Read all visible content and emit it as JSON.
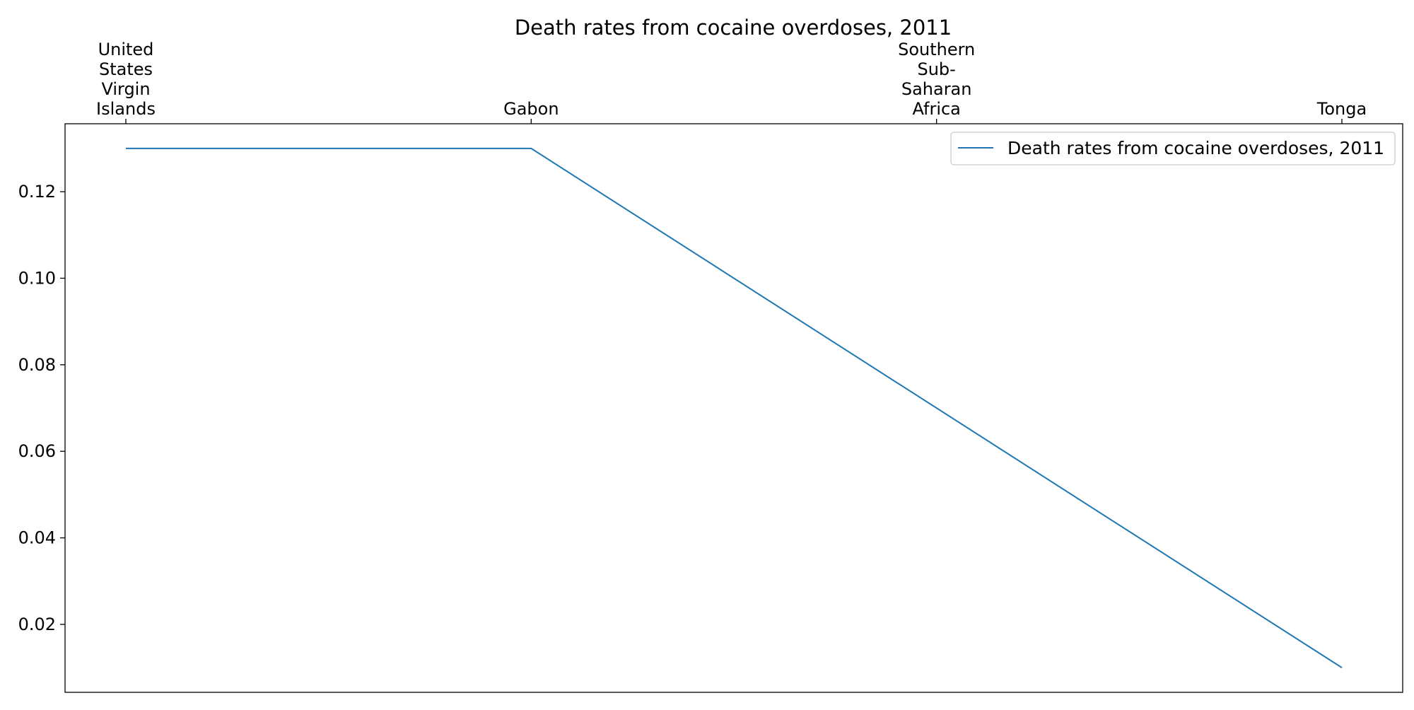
{
  "chart_data": {
    "type": "line",
    "title": "Death rates from cocaine overdoses, 2011",
    "categories": [
      "United States Virgin Islands",
      "Gabon",
      "Southern Sub-Saharan Africa",
      "Tonga"
    ],
    "category_label_lines": [
      [
        "United",
        "States",
        "Virgin",
        "Islands"
      ],
      [
        "Gabon"
      ],
      [
        "Southern",
        "Sub-",
        "Saharan",
        "Africa"
      ],
      [
        "Tonga"
      ]
    ],
    "x_axis_position": "top",
    "series": [
      {
        "name": "Death rates from cocaine overdoses, 2011",
        "color": "#1f77b4",
        "points": [
          {
            "category_index": 0,
            "value": 0.13
          },
          {
            "category_index": 1,
            "value": 0.13
          },
          {
            "category_index": 3,
            "value": 0.01
          }
        ]
      }
    ],
    "y_ticks": [
      0.02,
      0.04,
      0.06,
      0.08,
      0.1,
      0.12
    ],
    "y_tick_labels": [
      "0.02",
      "0.04",
      "0.06",
      "0.08",
      "0.10",
      "0.12"
    ],
    "ylim": [
      0.0043,
      0.1357
    ],
    "grid": false,
    "legend": {
      "placement": "top-right",
      "entries": [
        "Death rates from cocaine overdoses, 2011"
      ]
    },
    "xlabel": "",
    "ylabel": ""
  }
}
